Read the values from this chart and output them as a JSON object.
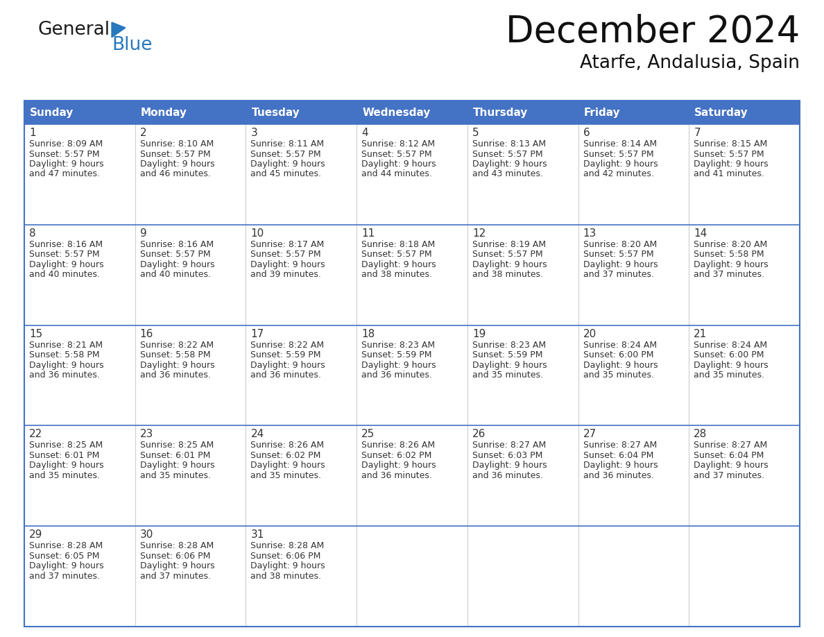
{
  "title": "December 2024",
  "subtitle": "Atarfe, Andalusia, Spain",
  "days_of_week": [
    "Sunday",
    "Monday",
    "Tuesday",
    "Wednesday",
    "Thursday",
    "Friday",
    "Saturday"
  ],
  "header_bg": "#4472C4",
  "header_text": "#FFFFFF",
  "cell_bg_white": "#FFFFFF",
  "cell_bg_gray": "#F2F2F2",
  "cell_border": "#4472C4",
  "day_num_color": "#333333",
  "day_text_color": "#333333",
  "logo_black": "#1a1a1a",
  "logo_blue": "#2878be",
  "calendar_data": [
    [
      {
        "day": 1,
        "sunrise": "8:09 AM",
        "sunset": "5:57 PM",
        "daylight_min": "47"
      },
      {
        "day": 2,
        "sunrise": "8:10 AM",
        "sunset": "5:57 PM",
        "daylight_min": "46"
      },
      {
        "day": 3,
        "sunrise": "8:11 AM",
        "sunset": "5:57 PM",
        "daylight_min": "45"
      },
      {
        "day": 4,
        "sunrise": "8:12 AM",
        "sunset": "5:57 PM",
        "daylight_min": "44"
      },
      {
        "day": 5,
        "sunrise": "8:13 AM",
        "sunset": "5:57 PM",
        "daylight_min": "43"
      },
      {
        "day": 6,
        "sunrise": "8:14 AM",
        "sunset": "5:57 PM",
        "daylight_min": "42"
      },
      {
        "day": 7,
        "sunrise": "8:15 AM",
        "sunset": "5:57 PM",
        "daylight_min": "41"
      }
    ],
    [
      {
        "day": 8,
        "sunrise": "8:16 AM",
        "sunset": "5:57 PM",
        "daylight_min": "40"
      },
      {
        "day": 9,
        "sunrise": "8:16 AM",
        "sunset": "5:57 PM",
        "daylight_min": "40"
      },
      {
        "day": 10,
        "sunrise": "8:17 AM",
        "sunset": "5:57 PM",
        "daylight_min": "39"
      },
      {
        "day": 11,
        "sunrise": "8:18 AM",
        "sunset": "5:57 PM",
        "daylight_min": "38"
      },
      {
        "day": 12,
        "sunrise": "8:19 AM",
        "sunset": "5:57 PM",
        "daylight_min": "38"
      },
      {
        "day": 13,
        "sunrise": "8:20 AM",
        "sunset": "5:57 PM",
        "daylight_min": "37"
      },
      {
        "day": 14,
        "sunrise": "8:20 AM",
        "sunset": "5:58 PM",
        "daylight_min": "37"
      }
    ],
    [
      {
        "day": 15,
        "sunrise": "8:21 AM",
        "sunset": "5:58 PM",
        "daylight_min": "36"
      },
      {
        "day": 16,
        "sunrise": "8:22 AM",
        "sunset": "5:58 PM",
        "daylight_min": "36"
      },
      {
        "day": 17,
        "sunrise": "8:22 AM",
        "sunset": "5:59 PM",
        "daylight_min": "36"
      },
      {
        "day": 18,
        "sunrise": "8:23 AM",
        "sunset": "5:59 PM",
        "daylight_min": "36"
      },
      {
        "day": 19,
        "sunrise": "8:23 AM",
        "sunset": "5:59 PM",
        "daylight_min": "35"
      },
      {
        "day": 20,
        "sunrise": "8:24 AM",
        "sunset": "6:00 PM",
        "daylight_min": "35"
      },
      {
        "day": 21,
        "sunrise": "8:24 AM",
        "sunset": "6:00 PM",
        "daylight_min": "35"
      }
    ],
    [
      {
        "day": 22,
        "sunrise": "8:25 AM",
        "sunset": "6:01 PM",
        "daylight_min": "35"
      },
      {
        "day": 23,
        "sunrise": "8:25 AM",
        "sunset": "6:01 PM",
        "daylight_min": "35"
      },
      {
        "day": 24,
        "sunrise": "8:26 AM",
        "sunset": "6:02 PM",
        "daylight_min": "35"
      },
      {
        "day": 25,
        "sunrise": "8:26 AM",
        "sunset": "6:02 PM",
        "daylight_min": "36"
      },
      {
        "day": 26,
        "sunrise": "8:27 AM",
        "sunset": "6:03 PM",
        "daylight_min": "36"
      },
      {
        "day": 27,
        "sunrise": "8:27 AM",
        "sunset": "6:04 PM",
        "daylight_min": "36"
      },
      {
        "day": 28,
        "sunrise": "8:27 AM",
        "sunset": "6:04 PM",
        "daylight_min": "37"
      }
    ],
    [
      {
        "day": 29,
        "sunrise": "8:28 AM",
        "sunset": "6:05 PM",
        "daylight_min": "37"
      },
      {
        "day": 30,
        "sunrise": "8:28 AM",
        "sunset": "6:06 PM",
        "daylight_min": "37"
      },
      {
        "day": 31,
        "sunrise": "8:28 AM",
        "sunset": "6:06 PM",
        "daylight_min": "38"
      },
      null,
      null,
      null,
      null
    ]
  ]
}
